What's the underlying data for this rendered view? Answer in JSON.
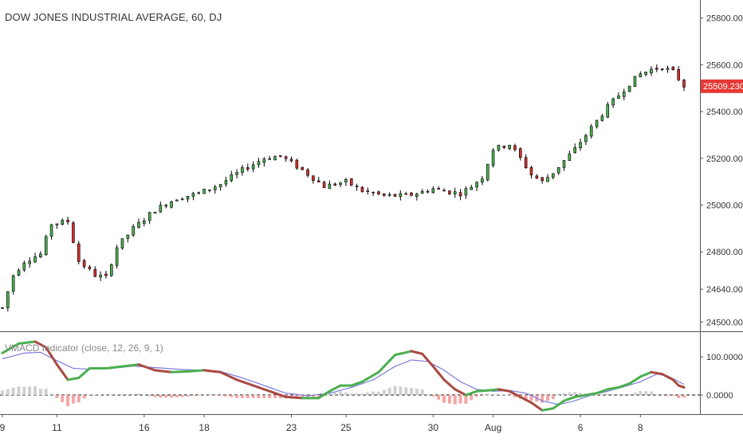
{
  "chart_title": "DOW JONES INDUSTRIAL AVERAGE, 60, DJ",
  "indicator_title": "VMACD Indicator (close, 12, 26, 9, 1)",
  "last_price": "25509.230",
  "colors": {
    "up": "#4caf50",
    "down": "#d32f2f",
    "wick": "#000000",
    "price_tag": "#e53935",
    "signal": "#7b7bdc",
    "macd_up": "#4caf50",
    "macd_down": "#a94a44",
    "hist_pos": "#d0d0d0",
    "hist_neg": "#f4a6a6"
  },
  "chart_data": {
    "type": "candlestick",
    "price_axis": {
      "ticks": [
        "25800.000",
        "25600.000",
        "25400.000",
        "25200.000",
        "25000.000",
        "24800.000",
        "24640.000",
        "24500.000"
      ],
      "tick_values": [
        25800,
        25600,
        25400,
        25200,
        25000,
        24800,
        24640,
        24500
      ],
      "range": [
        24460,
        25850
      ]
    },
    "indicator_axis": {
      "ticks": [
        "100.0000",
        "0.0000"
      ],
      "tick_values": [
        100,
        0
      ],
      "range": [
        -50,
        165
      ]
    },
    "x_axis": {
      "labels": [
        "9",
        "11",
        "16",
        "18",
        "23",
        "25",
        "30",
        "Aug",
        "6",
        "8"
      ],
      "label_index": [
        0,
        10,
        26,
        37,
        53,
        63,
        79,
        90,
        106,
        117
      ],
      "n": 126
    },
    "price_path": [
      [
        0,
        24560
      ],
      [
        2,
        24700
      ],
      [
        4,
        24760
      ],
      [
        7,
        24790
      ],
      [
        9,
        24920
      ],
      [
        12,
        24930
      ],
      [
        14,
        24760
      ],
      [
        17,
        24700
      ],
      [
        19,
        24690
      ],
      [
        21,
        24820
      ],
      [
        24,
        24900
      ],
      [
        28,
        24980
      ],
      [
        32,
        25030
      ],
      [
        36,
        25050
      ],
      [
        40,
        25090
      ],
      [
        44,
        25150
      ],
      [
        48,
        25200
      ],
      [
        51,
        25210
      ],
      [
        55,
        25150
      ],
      [
        59,
        25080
      ],
      [
        63,
        25100
      ],
      [
        66,
        25060
      ],
      [
        70,
        25040
      ],
      [
        74,
        25040
      ],
      [
        76,
        25050
      ],
      [
        79,
        25070
      ],
      [
        81,
        25060
      ],
      [
        84,
        25050
      ],
      [
        86,
        25080
      ],
      [
        88,
        25120
      ],
      [
        90,
        25240
      ],
      [
        93,
        25260
      ],
      [
        95,
        25200
      ],
      [
        97,
        25130
      ],
      [
        99,
        25100
      ],
      [
        101,
        25140
      ],
      [
        103,
        25190
      ],
      [
        105,
        25240
      ],
      [
        107,
        25300
      ],
      [
        109,
        25360
      ],
      [
        111,
        25420
      ],
      [
        113,
        25470
      ],
      [
        115,
        25520
      ],
      [
        117,
        25560
      ],
      [
        119,
        25580
      ],
      [
        121,
        25590
      ],
      [
        123,
        25570
      ],
      [
        125,
        25510
      ]
    ],
    "macd_path": [
      [
        0,
        110
      ],
      [
        3,
        135
      ],
      [
        6,
        140
      ],
      [
        8,
        125
      ],
      [
        10,
        80
      ],
      [
        12,
        40
      ],
      [
        14,
        45
      ],
      [
        16,
        70
      ],
      [
        19,
        70
      ],
      [
        22,
        75
      ],
      [
        25,
        80
      ],
      [
        28,
        65
      ],
      [
        31,
        60
      ],
      [
        34,
        62
      ],
      [
        37,
        65
      ],
      [
        40,
        60
      ],
      [
        43,
        40
      ],
      [
        46,
        25
      ],
      [
        49,
        10
      ],
      [
        52,
        -5
      ],
      [
        55,
        -8
      ],
      [
        58,
        -8
      ],
      [
        60,
        10
      ],
      [
        62,
        25
      ],
      [
        64,
        25
      ],
      [
        66,
        35
      ],
      [
        69,
        60
      ],
      [
        72,
        105
      ],
      [
        75,
        115
      ],
      [
        77,
        108
      ],
      [
        79,
        75
      ],
      [
        81,
        40
      ],
      [
        83,
        15
      ],
      [
        85,
        0
      ],
      [
        87,
        10
      ],
      [
        89,
        12
      ],
      [
        91,
        15
      ],
      [
        93,
        10
      ],
      [
        95,
        -5
      ],
      [
        97,
        -20
      ],
      [
        99,
        -40
      ],
      [
        101,
        -35
      ],
      [
        103,
        -15
      ],
      [
        105,
        -5
      ],
      [
        107,
        0
      ],
      [
        109,
        5
      ],
      [
        111,
        15
      ],
      [
        113,
        20
      ],
      [
        115,
        30
      ],
      [
        117,
        48
      ],
      [
        119,
        60
      ],
      [
        121,
        55
      ],
      [
        123,
        40
      ],
      [
        124,
        25
      ],
      [
        125,
        20
      ]
    ],
    "signal_path": [
      [
        0,
        95
      ],
      [
        4,
        110
      ],
      [
        7,
        112
      ],
      [
        10,
        90
      ],
      [
        13,
        70
      ],
      [
        16,
        68
      ],
      [
        20,
        70
      ],
      [
        24,
        76
      ],
      [
        28,
        72
      ],
      [
        32,
        68
      ],
      [
        36,
        65
      ],
      [
        40,
        62
      ],
      [
        44,
        45
      ],
      [
        48,
        25
      ],
      [
        52,
        5
      ],
      [
        56,
        -2
      ],
      [
        60,
        5
      ],
      [
        64,
        20
      ],
      [
        68,
        40
      ],
      [
        72,
        75
      ],
      [
        75,
        92
      ],
      [
        78,
        88
      ],
      [
        81,
        65
      ],
      [
        84,
        35
      ],
      [
        87,
        15
      ],
      [
        90,
        10
      ],
      [
        93,
        12
      ],
      [
        96,
        5
      ],
      [
        99,
        -15
      ],
      [
        102,
        -25
      ],
      [
        105,
        -15
      ],
      [
        108,
        0
      ],
      [
        111,
        10
      ],
      [
        114,
        22
      ],
      [
        117,
        35
      ],
      [
        120,
        55
      ],
      [
        122,
        50
      ],
      [
        125,
        28
      ]
    ]
  }
}
